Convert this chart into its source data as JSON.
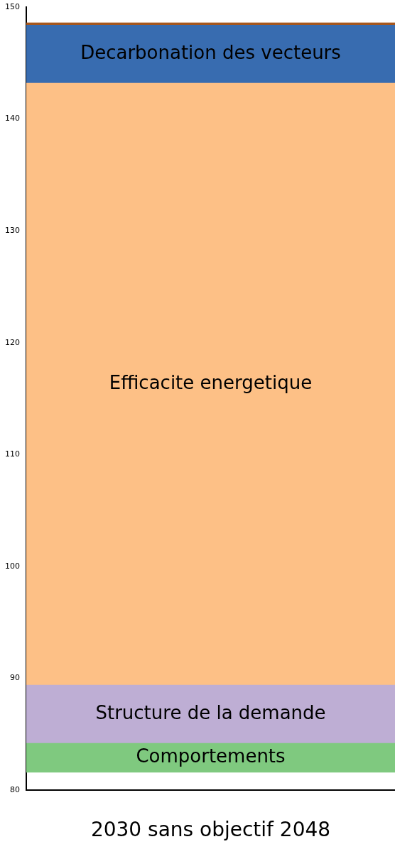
{
  "chart_data": {
    "type": "bar",
    "categories": [
      null
    ],
    "xlabel": "2030 sans objectif 2048",
    "ylim": [
      80,
      150
    ],
    "yticks": [
      80,
      90,
      100,
      110,
      120,
      130,
      140,
      150
    ],
    "grid": false,
    "legend": false,
    "series": [
      {
        "name": "Comportements",
        "color": "#7fc97f",
        "values": [
          2.6
        ],
        "base": [
          81.6
        ]
      },
      {
        "name": "Structure de la demande",
        "color": "#beaed4",
        "values": [
          5.2
        ],
        "base": [
          84.2
        ]
      },
      {
        "name": "Efficacite energetique",
        "color": "#fdc086",
        "values": [
          53.8
        ],
        "base": [
          89.4
        ]
      },
      {
        "name": "Decarbonation des vecteurs",
        "color": "#386cb0",
        "values": [
          5.2
        ],
        "base": [
          143.2
        ]
      },
      {
        "color": "#a6571d",
        "values": [
          0.2
        ],
        "base": [
          148.4
        ]
      }
    ]
  }
}
